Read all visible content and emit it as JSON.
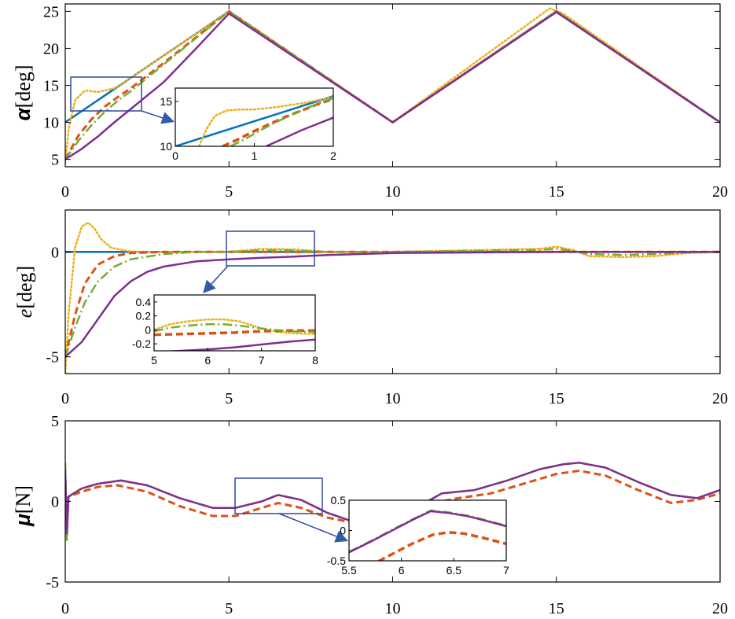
{
  "chart_data": [
    {
      "type": "line",
      "ylabel_symbol": "α",
      "ylabel_unit": "[deg]",
      "xlim": [
        0,
        20
      ],
      "ylim": [
        4,
        26
      ],
      "xticks": [
        "0",
        "5",
        "10",
        "15",
        "20"
      ],
      "yticks": [
        "5",
        "10",
        "15",
        "20",
        "25"
      ],
      "ytick_values": [
        5,
        10,
        15,
        20,
        25
      ],
      "series": [
        {
          "color": "#0072BD",
          "style": "solid",
          "x": [
            0,
            5,
            10,
            15,
            20
          ],
          "y": [
            10,
            25,
            10,
            25,
            10
          ]
        },
        {
          "color": "#EDB120",
          "style": "dotted",
          "x": [
            0,
            0.1,
            0.3,
            0.6,
            1.0,
            1.5,
            2.0,
            3.0,
            4.0,
            5.0,
            10,
            14.8,
            15.2,
            20
          ],
          "y": [
            4.5,
            9.0,
            13.0,
            14.3,
            14.1,
            14.6,
            16.0,
            19.0,
            22.0,
            25.0,
            10,
            25.4,
            24.7,
            10
          ]
        },
        {
          "color": "#D95319",
          "style": "dashed",
          "x": [
            0,
            0.4,
            0.8,
            1.2,
            1.6,
            2.0,
            3.0,
            4.0,
            5.0,
            10,
            15,
            20
          ],
          "y": [
            5,
            8.2,
            10.4,
            12.1,
            13.4,
            14.6,
            18.0,
            21.5,
            25.0,
            10,
            25,
            10
          ]
        },
        {
          "color": "#77AC30",
          "style": "dashdot",
          "x": [
            0,
            0.4,
            0.8,
            1.2,
            1.6,
            2.0,
            3.0,
            4.0,
            5.0,
            10,
            15,
            20
          ],
          "y": [
            5,
            7.5,
            9.6,
            11.4,
            12.9,
            14.2,
            17.8,
            21.4,
            25.0,
            10,
            25,
            10
          ]
        },
        {
          "color": "#7E2F8E",
          "style": "solid",
          "x": [
            0,
            0.5,
            1.0,
            1.5,
            2.0,
            3.0,
            4.0,
            5.0,
            10,
            15,
            20
          ],
          "y": [
            5,
            6.4,
            8.1,
            10.0,
            11.8,
            15.4,
            20.0,
            24.7,
            10,
            24.9,
            10
          ]
        }
      ],
      "inset": {
        "xlim": [
          0,
          2
        ],
        "ylim": [
          10,
          16.5
        ],
        "xticks": [
          "0",
          "1",
          "2"
        ],
        "xtick_values": [
          0,
          1,
          2
        ],
        "yticks": [
          "10",
          "15"
        ],
        "ytick_values": [
          10,
          15
        ],
        "series": [
          {
            "color": "#0072BD",
            "style": "solid",
            "x": [
              0,
              2
            ],
            "y": [
              10,
              15.6
            ]
          },
          {
            "color": "#EDB120",
            "style": "dotted",
            "x": [
              0.3,
              0.4,
              0.5,
              0.65,
              0.8,
              1.0,
              1.3,
              1.6,
              2.0
            ],
            "y": [
              10,
              12.0,
              13.4,
              14.0,
              14.1,
              14.1,
              14.4,
              14.8,
              15.5
            ]
          },
          {
            "color": "#D95319",
            "style": "dashed",
            "x": [
              0.6,
              0.8,
              1.0,
              1.2,
              1.4,
              1.6,
              1.8,
              2.0
            ],
            "y": [
              10,
              10.8,
              11.7,
              12.5,
              13.3,
              14.0,
              14.7,
              15.3
            ]
          },
          {
            "color": "#77AC30",
            "style": "dashdot",
            "x": [
              0.7,
              0.9,
              1.1,
              1.3,
              1.5,
              1.7,
              2.0
            ],
            "y": [
              10,
              10.9,
              11.9,
              12.8,
              13.6,
              14.4,
              15.4
            ]
          },
          {
            "color": "#7E2F8E",
            "style": "solid",
            "x": [
              1.15,
              1.4,
              1.6,
              1.8,
              2.0
            ],
            "y": [
              10,
              11.0,
              11.8,
              12.5,
              13.2
            ]
          }
        ]
      }
    },
    {
      "type": "line",
      "ylabel_symbol": "e",
      "ylabel_unit": "[deg]",
      "xlim": [
        0,
        20
      ],
      "ylim": [
        -5.8,
        2.0
      ],
      "xticks": [
        "0",
        "5",
        "10",
        "15",
        "20"
      ],
      "yticks": [
        "-5",
        "0"
      ],
      "ytick_values": [
        -5,
        0
      ],
      "series": [
        {
          "color": "#0072BD",
          "style": "solid",
          "x": [
            0,
            20
          ],
          "y": [
            0,
            0
          ]
        },
        {
          "color": "#EDB120",
          "style": "dotted",
          "x": [
            0,
            0.1,
            0.3,
            0.5,
            0.7,
            0.9,
            1.1,
            1.4,
            2.0,
            3.0,
            5.0,
            6.0,
            7.0,
            8.0,
            10,
            14.5,
            15.0,
            15.5,
            16.0,
            17.0,
            18.0,
            19.0,
            20
          ],
          "y": [
            -5.8,
            -3.0,
            0.2,
            1.2,
            1.4,
            1.1,
            0.6,
            0.2,
            0.02,
            0.0,
            0.0,
            0.15,
            0.12,
            0.0,
            0.0,
            0.15,
            0.25,
            0.1,
            -0.2,
            -0.25,
            -0.2,
            -0.05,
            0
          ]
        },
        {
          "color": "#D95319",
          "style": "dashed",
          "x": [
            0,
            0.3,
            0.6,
            1.0,
            1.5,
            2.0,
            3.0,
            5.0,
            10,
            15,
            20
          ],
          "y": [
            -5,
            -3.0,
            -1.5,
            -0.6,
            -0.2,
            -0.05,
            0.0,
            0.0,
            0.0,
            0.0,
            0
          ]
        },
        {
          "color": "#77AC30",
          "style": "dashdot",
          "x": [
            0,
            0.3,
            0.6,
            1.0,
            1.5,
            2.0,
            3.0,
            4.0,
            5.0,
            6.0,
            7.0,
            8.0,
            10,
            14.5,
            15.0,
            15.5,
            16.0,
            17.0,
            18.0,
            19.0,
            20
          ],
          "y": [
            -5,
            -3.6,
            -2.4,
            -1.4,
            -0.7,
            -0.35,
            -0.1,
            0.0,
            0.0,
            0.08,
            0.07,
            0.0,
            0.0,
            0.1,
            0.15,
            0.05,
            -0.1,
            -0.15,
            -0.1,
            -0.03,
            0
          ]
        },
        {
          "color": "#7E2F8E",
          "style": "solid",
          "x": [
            0,
            0.5,
            1.0,
            1.5,
            2.0,
            2.5,
            3.0,
            4.0,
            5.0,
            6.0,
            7.0,
            8.0,
            10,
            15,
            20
          ],
          "y": [
            -5,
            -4.3,
            -3.2,
            -2.1,
            -1.4,
            -0.95,
            -0.7,
            -0.45,
            -0.35,
            -0.28,
            -0.22,
            -0.15,
            -0.05,
            0.0,
            0
          ]
        }
      ],
      "inset": {
        "xlim": [
          5,
          8
        ],
        "ylim": [
          -0.3,
          0.5
        ],
        "xticks": [
          "5",
          "6",
          "7",
          "8"
        ],
        "xtick_values": [
          5,
          6,
          7,
          8
        ],
        "yticks": [
          "0.4",
          "0.2",
          "0",
          "-0.2"
        ],
        "ytick_values": [
          0.4,
          0.2,
          0,
          -0.2
        ],
        "series": [
          {
            "color": "#EDB120",
            "style": "dotted",
            "x": [
              5.0,
              5.3,
              5.6,
              6.0,
              6.3,
              6.6,
              6.8,
              7.0,
              7.3,
              7.6,
              8.0
            ],
            "y": [
              0.0,
              0.08,
              0.12,
              0.15,
              0.15,
              0.12,
              0.07,
              0.02,
              -0.03,
              -0.05,
              -0.06
            ]
          },
          {
            "color": "#D95319",
            "style": "dashed",
            "x": [
              5.0,
              5.5,
              6.0,
              6.5,
              7.0,
              7.5,
              8.0
            ],
            "y": [
              -0.07,
              -0.06,
              -0.05,
              -0.04,
              -0.02,
              -0.01,
              -0.01
            ]
          },
          {
            "color": "#77AC30",
            "style": "dashdot",
            "x": [
              5.0,
              5.3,
              5.6,
              6.0,
              6.3,
              6.6,
              7.0,
              7.5,
              8.0
            ],
            "y": [
              -0.02,
              0.03,
              0.06,
              0.08,
              0.08,
              0.06,
              0.02,
              -0.02,
              -0.03
            ]
          },
          {
            "color": "#7E2F8E",
            "style": "solid",
            "x": [
              5.0,
              5.5,
              6.0,
              6.5,
              7.0,
              7.5,
              8.0
            ],
            "y": [
              -0.32,
              -0.3,
              -0.28,
              -0.25,
              -0.21,
              -0.17,
              -0.14
            ]
          }
        ]
      }
    },
    {
      "type": "line",
      "ylabel_symbol": "μ",
      "ylabel_unit": "[N]",
      "xlim": [
        0,
        20
      ],
      "ylim": [
        -5,
        5
      ],
      "xticks": [
        "0",
        "5",
        "10",
        "15",
        "20"
      ],
      "yticks": [
        "5",
        "0",
        "-5"
      ],
      "ytick_values": [
        5,
        0,
        -5
      ],
      "series": [
        {
          "color": "#D95319",
          "style": "dashed",
          "x": [
            0,
            0.1,
            0.5,
            1.0,
            1.6,
            2.5,
            3.5,
            4.5,
            5.2,
            6.0,
            6.5,
            7.2,
            8.0,
            9.0,
            10.0,
            11.0,
            12.0,
            13.0,
            14.0,
            15.0,
            15.7,
            16.5,
            17.5,
            18.5,
            19.3,
            20.0
          ],
          "y": [
            0,
            0.3,
            0.6,
            0.9,
            1.0,
            0.6,
            -0.3,
            -0.9,
            -0.9,
            -0.4,
            -0.1,
            -0.4,
            -1.0,
            -1.4,
            -1.0,
            -0.2,
            0.2,
            0.5,
            1.1,
            1.7,
            1.9,
            1.6,
            0.7,
            -0.1,
            0.1,
            0.5
          ]
        },
        {
          "color": "#77AC30",
          "style": "dashdot",
          "x": [
            0,
            0.05,
            0.1,
            0.5,
            1.0,
            1.7,
            2.5,
            3.5,
            4.5,
            5.2,
            6.0,
            6.5,
            7.2,
            8.0,
            9.0,
            10.0,
            10.8,
            11.5,
            12.5,
            13.5,
            14.5,
            15.2,
            15.7,
            16.5,
            17.5,
            18.5,
            19.3,
            20.0
          ],
          "y": [
            2.4,
            -2.4,
            0.3,
            0.8,
            1.1,
            1.3,
            1.0,
            0.2,
            -0.4,
            -0.4,
            0.0,
            0.4,
            0.1,
            -0.7,
            -1.4,
            -1.2,
            -0.3,
            0.5,
            0.7,
            1.3,
            2.0,
            2.3,
            2.4,
            2.1,
            1.2,
            0.4,
            0.2,
            0.7
          ]
        },
        {
          "color": "#7E2F8E",
          "style": "solid",
          "x": [
            0,
            0.05,
            0.1,
            0.5,
            1.0,
            1.7,
            2.5,
            3.5,
            4.5,
            5.2,
            6.0,
            6.5,
            7.2,
            8.0,
            9.0,
            10.0,
            10.8,
            11.5,
            12.5,
            13.5,
            14.5,
            15.2,
            15.7,
            16.5,
            17.5,
            18.5,
            19.3,
            20.0
          ],
          "y": [
            1.9,
            -2.0,
            0.3,
            0.8,
            1.1,
            1.3,
            1.0,
            0.2,
            -0.4,
            -0.4,
            0.0,
            0.4,
            0.1,
            -0.7,
            -1.4,
            -1.2,
            -0.3,
            0.5,
            0.7,
            1.3,
            2.0,
            2.3,
            2.4,
            2.1,
            1.2,
            0.4,
            0.2,
            0.7
          ]
        }
      ],
      "inset": {
        "xlim": [
          5.5,
          7
        ],
        "ylim": [
          -0.5,
          0.5
        ],
        "xticks": [
          "5.5",
          "6",
          "6.5",
          "7"
        ],
        "xtick_values": [
          5.5,
          6,
          6.5,
          7
        ],
        "yticks": [
          "0.5",
          "0",
          "-0.5"
        ],
        "ytick_values": [
          0.5,
          0,
          -0.5
        ],
        "series": [
          {
            "color": "#D95319",
            "style": "dashed",
            "x": [
              5.5,
              5.7,
              5.9,
              6.1,
              6.3,
              6.45,
              6.6,
              6.8,
              7.0
            ],
            "y": [
              -0.75,
              -0.58,
              -0.4,
              -0.22,
              -0.07,
              -0.03,
              -0.05,
              -0.13,
              -0.22
            ]
          },
          {
            "color": "#77AC30",
            "style": "dashdot",
            "x": [
              5.5,
              5.7,
              5.9,
              6.1,
              6.28,
              6.45,
              6.65,
              6.85,
              7.0
            ],
            "y": [
              -0.35,
              -0.18,
              0.0,
              0.18,
              0.33,
              0.3,
              0.24,
              0.15,
              0.08
            ]
          },
          {
            "color": "#7E2F8E",
            "style": "solid",
            "x": [
              5.5,
              5.7,
              5.9,
              6.1,
              6.28,
              6.45,
              6.65,
              6.85,
              7.0
            ],
            "y": [
              -0.36,
              -0.19,
              -0.01,
              0.17,
              0.32,
              0.29,
              0.23,
              0.14,
              0.07
            ]
          }
        ]
      }
    }
  ]
}
